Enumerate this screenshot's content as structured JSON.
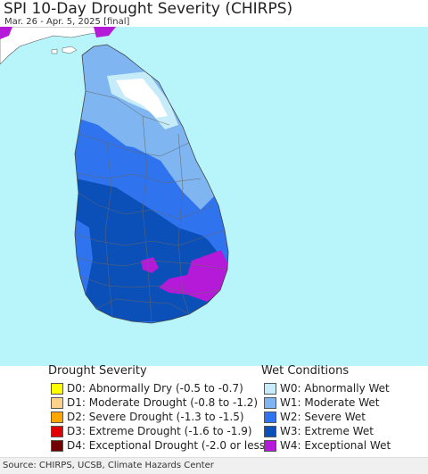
{
  "header": {
    "title": "SPI 10-Day Drought Severity (CHIRPS)",
    "subtitle": "Mar. 26 - Apr. 5, 2025 [final]"
  },
  "map": {
    "region": "Sri Lanka",
    "colors": {
      "ocean": "#b7f5fb",
      "w0": "#c6ecfa",
      "w1": "#7fb5f0",
      "w2": "#2f74ee",
      "w3": "#0b4fb8",
      "w4": "#b61ad9",
      "none": "#ffffff",
      "boundary": "#555555"
    }
  },
  "legend": {
    "drought": {
      "title": "Drought Severity",
      "items": [
        {
          "label": "D0: Abnormally Dry (-0.5 to -0.7)",
          "color": "#ffff00"
        },
        {
          "label": "D1: Moderate Drought (-0.8 to -1.2)",
          "color": "#fcd38a"
        },
        {
          "label": "D2: Severe Drought (-1.3 to -1.5)",
          "color": "#ffa500"
        },
        {
          "label": "D3: Extreme Drought (-1.6 to -1.9)",
          "color": "#e00000"
        },
        {
          "label": "D4: Exceptional Drought (-2.0 or less)",
          "color": "#730000"
        }
      ]
    },
    "wet": {
      "title": "Wet Conditions",
      "items": [
        {
          "label": "W0: Abnormally Wet",
          "color": "#c6ecfa"
        },
        {
          "label": "W1: Moderate Wet",
          "color": "#7fb5f0"
        },
        {
          "label": "W2: Severe Wet",
          "color": "#2f74ee"
        },
        {
          "label": "W3: Extreme Wet",
          "color": "#0b4fb8"
        },
        {
          "label": "W4: Exceptional Wet",
          "color": "#b61ad9"
        }
      ]
    }
  },
  "footer": {
    "source": "Source: CHIRPS, UCSB, Climate Hazards Center"
  }
}
